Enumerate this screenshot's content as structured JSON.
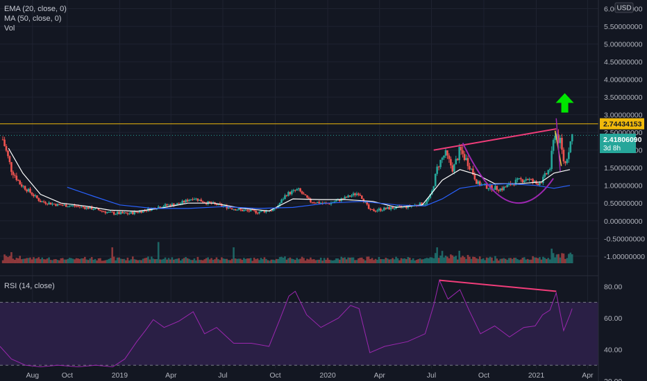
{
  "header": {
    "indicators": [
      "EMA (20, close, 0)",
      "MA (50, close, 0)",
      "Vol"
    ],
    "currency_label": "USD"
  },
  "rsi_panel": {
    "label": "RSI (14, close)"
  },
  "price_badges": {
    "resistance": "2.74434153",
    "last_price": "2.41806090",
    "countdown": "3d 8h"
  },
  "colors": {
    "background": "#131722",
    "bull": "#26a69a",
    "bear": "#ef5350",
    "ema": "#ffffff",
    "ma": "#2962ff",
    "resistance": "#f0b90b",
    "trendline": "#f23d7a",
    "cup": "#9c27b0",
    "rsi_line": "#9c27b0",
    "rsi_band": "#2a1f45",
    "arrow": "#00e600",
    "wedge": "#f6c343"
  },
  "icons": {
    "arrow": "up-arrow-icon"
  },
  "chart_data": [
    {
      "type": "candlestick",
      "title": "",
      "ylim": [
        -1.2,
        6.05
      ],
      "y_ticks": [
        "6.00000000",
        "5.50000000",
        "5.00000000",
        "4.50000000",
        "4.00000000",
        "3.50000000",
        "3.00000000",
        "2.50000000",
        "2.00000000",
        "1.50000000",
        "1.00000000",
        "0.50000000",
        "0.00000000",
        "-0.50000000",
        "-1.00000000"
      ],
      "y_tick_values": [
        6.0,
        5.5,
        5.0,
        4.5,
        4.0,
        3.5,
        3.0,
        2.5,
        2.0,
        1.5,
        1.0,
        0.5,
        0.0,
        -0.5,
        -1.0
      ],
      "x_ticks": [
        "Aug",
        "Oct",
        "2019",
        "Apr",
        "Jul",
        "Oct",
        "2020",
        "Apr",
        "Jul",
        "Oct",
        "2021",
        "Apr"
      ],
      "x_tick_dates": [
        "2018-08-01",
        "2018-10-01",
        "2019-01-01",
        "2019-04-01",
        "2019-07-01",
        "2019-10-01",
        "2020-01-01",
        "2020-04-01",
        "2020-07-01",
        "2020-10-01",
        "2021-01-01",
        "2021-04-01"
      ],
      "x_range": [
        "2018-06-05",
        "2021-04-20"
      ],
      "price_path": [
        [
          "2018-06-10",
          2.3
        ],
        [
          "2018-06-25",
          1.45
        ],
        [
          "2018-07-10",
          1.05
        ],
        [
          "2018-07-25",
          0.85
        ],
        [
          "2018-08-15",
          0.55
        ],
        [
          "2018-09-15",
          0.45
        ],
        [
          "2018-10-15",
          0.42
        ],
        [
          "2018-11-15",
          0.35
        ],
        [
          "2018-12-15",
          0.22
        ],
        [
          "2019-01-15",
          0.2
        ],
        [
          "2019-02-15",
          0.3
        ],
        [
          "2019-03-15",
          0.42
        ],
        [
          "2019-04-15",
          0.48
        ],
        [
          "2019-05-10",
          0.65
        ],
        [
          "2019-06-01",
          0.52
        ],
        [
          "2019-07-01",
          0.42
        ],
        [
          "2019-08-01",
          0.3
        ],
        [
          "2019-09-01",
          0.25
        ],
        [
          "2019-10-01",
          0.32
        ],
        [
          "2019-10-20",
          0.75
        ],
        [
          "2019-11-10",
          0.88
        ],
        [
          "2019-12-01",
          0.55
        ],
        [
          "2020-01-01",
          0.48
        ],
        [
          "2020-02-01",
          0.65
        ],
        [
          "2020-02-25",
          0.8
        ],
        [
          "2020-03-15",
          0.28
        ],
        [
          "2020-04-15",
          0.35
        ],
        [
          "2020-05-20",
          0.4
        ],
        [
          "2020-06-20",
          0.5
        ],
        [
          "2020-07-01",
          0.75
        ],
        [
          "2020-07-12",
          1.55
        ],
        [
          "2020-07-25",
          1.9
        ],
        [
          "2020-08-08",
          1.45
        ],
        [
          "2020-08-20",
          2.0
        ],
        [
          "2020-09-05",
          1.6
        ],
        [
          "2020-09-20",
          1.05
        ],
        [
          "2020-10-10",
          0.95
        ],
        [
          "2020-11-01",
          0.9
        ],
        [
          "2020-11-25",
          1.1
        ],
        [
          "2020-12-15",
          1.2
        ],
        [
          "2021-01-01",
          1.05
        ],
        [
          "2021-01-12",
          1.15
        ],
        [
          "2021-01-25",
          1.5
        ],
        [
          "2021-02-03",
          2.55
        ],
        [
          "2021-02-12",
          2.2
        ],
        [
          "2021-02-20",
          1.55
        ],
        [
          "2021-02-27",
          2.05
        ],
        [
          "2021-03-05",
          2.42
        ]
      ],
      "ema_path": [
        [
          "2018-06-20",
          2.05
        ],
        [
          "2018-07-15",
          1.35
        ],
        [
          "2018-08-15",
          0.75
        ],
        [
          "2018-09-20",
          0.5
        ],
        [
          "2018-11-01",
          0.42
        ],
        [
          "2018-12-15",
          0.3
        ],
        [
          "2019-02-01",
          0.27
        ],
        [
          "2019-03-15",
          0.36
        ],
        [
          "2019-05-01",
          0.5
        ],
        [
          "2019-06-15",
          0.5
        ],
        [
          "2019-08-01",
          0.36
        ],
        [
          "2019-09-20",
          0.28
        ],
        [
          "2019-11-01",
          0.62
        ],
        [
          "2019-12-20",
          0.6
        ],
        [
          "2020-02-01",
          0.6
        ],
        [
          "2020-03-20",
          0.55
        ],
        [
          "2020-05-01",
          0.38
        ],
        [
          "2020-06-15",
          0.45
        ],
        [
          "2020-07-20",
          1.15
        ],
        [
          "2020-08-20",
          1.45
        ],
        [
          "2020-09-20",
          1.3
        ],
        [
          "2020-10-20",
          1.05
        ],
        [
          "2020-12-01",
          1.05
        ],
        [
          "2021-01-10",
          1.1
        ],
        [
          "2021-02-01",
          1.35
        ],
        [
          "2021-03-01",
          1.45
        ]
      ],
      "ma_path": [
        [
          "2018-10-01",
          0.95
        ],
        [
          "2018-11-15",
          0.7
        ],
        [
          "2019-01-01",
          0.45
        ],
        [
          "2019-03-01",
          0.35
        ],
        [
          "2019-05-01",
          0.35
        ],
        [
          "2019-07-01",
          0.4
        ],
        [
          "2019-09-01",
          0.35
        ],
        [
          "2019-11-01",
          0.38
        ],
        [
          "2020-01-01",
          0.5
        ],
        [
          "2020-03-01",
          0.55
        ],
        [
          "2020-05-01",
          0.45
        ],
        [
          "2020-06-20",
          0.42
        ],
        [
          "2020-07-20",
          0.62
        ],
        [
          "2020-08-20",
          0.92
        ],
        [
          "2020-10-01",
          1.02
        ],
        [
          "2020-11-15",
          1.05
        ],
        [
          "2020-12-31",
          1.0
        ],
        [
          "2021-02-01",
          0.92
        ],
        [
          "2021-03-01",
          1.0
        ]
      ],
      "volume_spikes": [
        [
          "2018-12-20",
          0.45
        ],
        [
          "2019-03-10",
          0.6
        ],
        [
          "2019-07-20",
          0.45
        ],
        [
          "2020-07-10",
          0.45
        ],
        [
          "2020-07-20",
          0.35
        ],
        [
          "2021-02-05",
          0.25
        ]
      ],
      "annotations": {
        "resistance_level": 2.74434153,
        "last_price": 2.4180609,
        "rising_trendline": [
          [
            "2020-07-05",
            2.0
          ],
          [
            "2021-02-05",
            2.6
          ]
        ],
        "cup_arc": [
          [
            "2020-08-25",
            2.2
          ],
          [
            "2020-11-15",
            0.0
          ],
          [
            "2021-01-31",
            1.2
          ]
        ],
        "wedge_lines": [
          [
            [
              "2021-02-03",
              2.55
            ],
            [
              "2021-02-14",
              1.55
            ]
          ],
          [
            [
              "2021-02-05",
              2.9
            ],
            [
              "2021-02-12",
              1.4
            ]
          ]
        ],
        "arrow_at": [
          "2021-02-20",
          3.1
        ]
      }
    },
    {
      "type": "line",
      "title": "",
      "ylim": [
        20,
        86
      ],
      "y_ticks": [
        "80.00",
        "60.00",
        "40.00",
        "20.00"
      ],
      "y_tick_values": [
        80,
        60,
        40,
        20
      ],
      "band": [
        30,
        70
      ],
      "rsi_path": [
        [
          "2018-06-05",
          42
        ],
        [
          "2018-06-25",
          34
        ],
        [
          "2018-07-20",
          30
        ],
        [
          "2018-08-15",
          29
        ],
        [
          "2018-09-15",
          30
        ],
        [
          "2018-10-20",
          29
        ],
        [
          "2018-11-20",
          30
        ],
        [
          "2018-12-20",
          29
        ],
        [
          "2019-01-10",
          34
        ],
        [
          "2019-01-31",
          45
        ],
        [
          "2019-02-15",
          52
        ],
        [
          "2019-03-01",
          59
        ],
        [
          "2019-03-20",
          54
        ],
        [
          "2019-04-15",
          58
        ],
        [
          "2019-05-10",
          64
        ],
        [
          "2019-05-30",
          50
        ],
        [
          "2019-06-20",
          54
        ],
        [
          "2019-07-20",
          44
        ],
        [
          "2019-08-20",
          44
        ],
        [
          "2019-09-20",
          42
        ],
        [
          "2019-10-10",
          60
        ],
        [
          "2019-10-25",
          74
        ],
        [
          "2019-11-05",
          77
        ],
        [
          "2019-11-25",
          62
        ],
        [
          "2019-12-20",
          54
        ],
        [
          "2020-01-20",
          60
        ],
        [
          "2020-02-10",
          68
        ],
        [
          "2020-02-25",
          66
        ],
        [
          "2020-03-15",
          38
        ],
        [
          "2020-04-10",
          42
        ],
        [
          "2020-05-20",
          45
        ],
        [
          "2020-06-20",
          50
        ],
        [
          "2020-07-05",
          68
        ],
        [
          "2020-07-15",
          84
        ],
        [
          "2020-07-30",
          72
        ],
        [
          "2020-08-20",
          78
        ],
        [
          "2020-09-05",
          65
        ],
        [
          "2020-09-25",
          50
        ],
        [
          "2020-10-20",
          55
        ],
        [
          "2020-11-15",
          48
        ],
        [
          "2020-12-10",
          54
        ],
        [
          "2020-12-30",
          55
        ],
        [
          "2021-01-12",
          62
        ],
        [
          "2021-01-25",
          65
        ],
        [
          "2021-02-05",
          76
        ],
        [
          "2021-02-18",
          52
        ],
        [
          "2021-03-01",
          62
        ],
        [
          "2021-03-05",
          66
        ]
      ],
      "divergence_line": [
        [
          "2020-07-15",
          84
        ],
        [
          "2021-02-05",
          77
        ]
      ]
    }
  ]
}
